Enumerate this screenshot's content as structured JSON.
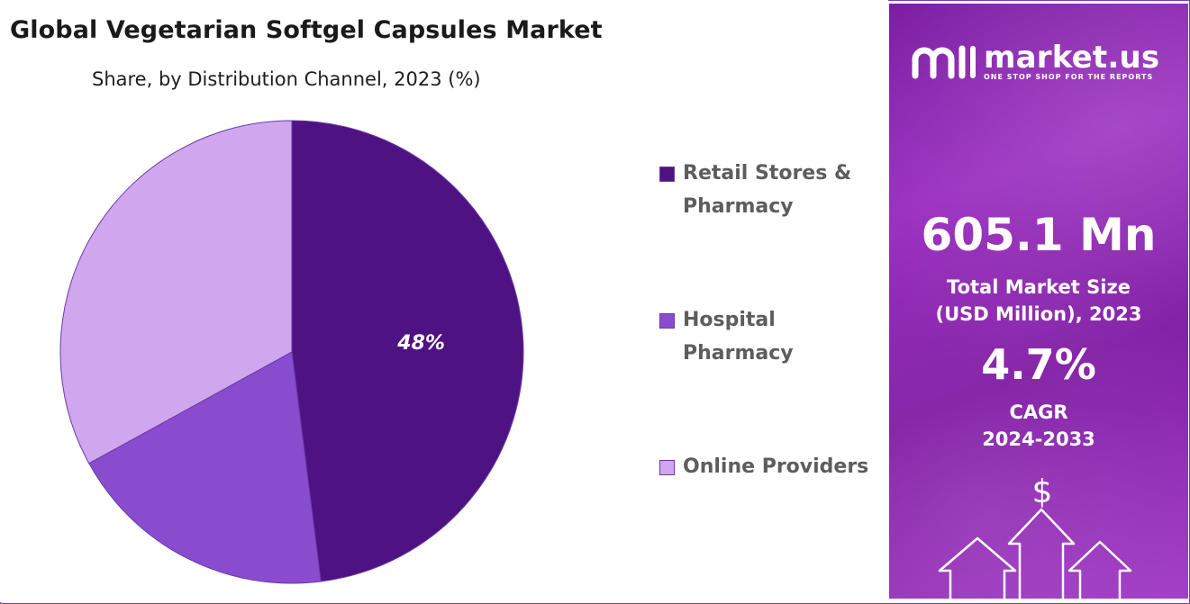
{
  "chart_data": {
    "type": "pie",
    "title": "Global Vegetarian Softgel Capsules Market",
    "subtitle": "Share, by Distribution Channel, 2023 (%)",
    "categories": [
      "Retail Stores & Pharmacy",
      "Hospital Pharmacy",
      "Online Providers"
    ],
    "values": [
      48,
      19,
      33
    ],
    "data_labels": [
      "48%",
      "",
      ""
    ],
    "colors": [
      "#4e1283",
      "#8a4ccf",
      "#d0a6ee"
    ],
    "legend": {
      "position": "right",
      "items": [
        {
          "line1": "Retail Stores &",
          "line2": "Pharmacy"
        },
        {
          "line1": "Hospital",
          "line2": "Pharmacy"
        },
        {
          "line1": "Online Providers",
          "line2": ""
        }
      ]
    }
  },
  "panel": {
    "brand": "market.us",
    "tagline": "ONE STOP SHOP FOR THE REPORTS",
    "market_size": "605.1 Mn",
    "market_size_label_1": "Total Market Size",
    "market_size_label_2": "(USD Million), 2023",
    "cagr": "4.7%",
    "cagr_label_1": "CAGR",
    "cagr_label_2": "2024-2033",
    "currency_symbol": "$",
    "background_color": "#8e22b8"
  }
}
